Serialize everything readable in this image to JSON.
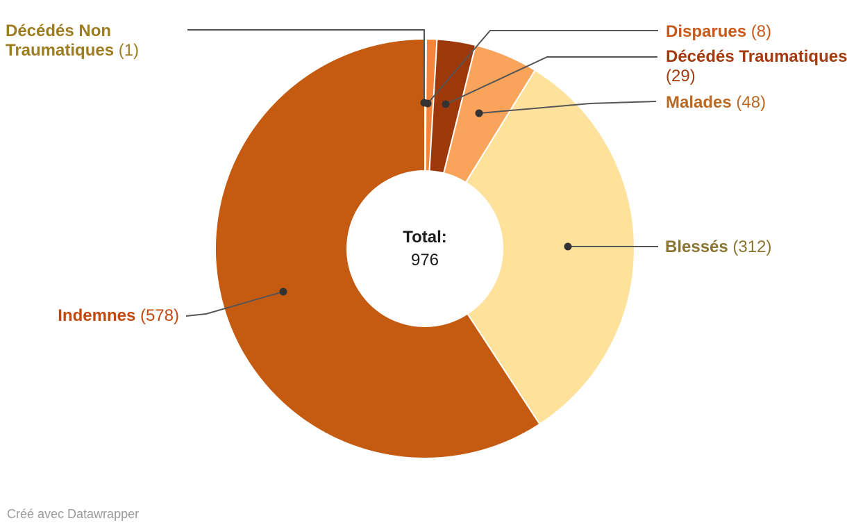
{
  "chart_data": {
    "type": "pie",
    "donut": true,
    "title": "",
    "categories": [
      "Décédés Non Traumatiques",
      "Disparues",
      "Décédés Traumatiques",
      "Malades",
      "Blessés",
      "Indemnes"
    ],
    "values": [
      1,
      8,
      29,
      48,
      312,
      578
    ],
    "total": 976,
    "center_label": {
      "title": "Total:",
      "value": "976"
    },
    "slices": [
      {
        "label": "Décédés Non Traumatiques",
        "value": 1,
        "display_count": "(1)",
        "color": "#DFAE3F",
        "label_color": "#9E7C20"
      },
      {
        "label": "Disparues",
        "value": 8,
        "display_count": "(8)",
        "color": "#F5843D",
        "label_color": "#C65A1A"
      },
      {
        "label": "Décédés Traumatiques",
        "value": 29,
        "display_count": "(29)",
        "color": "#9D380A",
        "label_color": "#A43B0F"
      },
      {
        "label": "Malades",
        "value": 48,
        "display_count": "(48)",
        "color": "#F9A35B",
        "label_color": "#B96923"
      },
      {
        "label": "Blessés",
        "value": 312,
        "display_count": "(312)",
        "color": "#FEE29C",
        "label_color": "#8A7431"
      },
      {
        "label": "Indemnes",
        "value": 578,
        "display_count": "(578)",
        "color": "#C55A11",
        "label_color": "#C1490F"
      }
    ],
    "leader_line_color": "#555555",
    "dot_color": "#333333",
    "slice_gap_color": "#ffffff"
  },
  "callouts": {
    "dnt": {
      "line1": "Décédés Non",
      "line2": "Traumatiques",
      "count": "(1)"
    },
    "disparues": {
      "name": "Disparues",
      "count": "(8)"
    },
    "dt": {
      "name": "Décédés Traumatiques",
      "count": "(29)"
    },
    "malades": {
      "name": "Malades",
      "count": "(48)"
    },
    "blesses": {
      "name": "Blessés",
      "count": "(312)"
    },
    "indemnes": {
      "name": "Indemnes",
      "count": "(578)"
    }
  },
  "footer": {
    "credit": "Créé avec Datawrapper"
  }
}
